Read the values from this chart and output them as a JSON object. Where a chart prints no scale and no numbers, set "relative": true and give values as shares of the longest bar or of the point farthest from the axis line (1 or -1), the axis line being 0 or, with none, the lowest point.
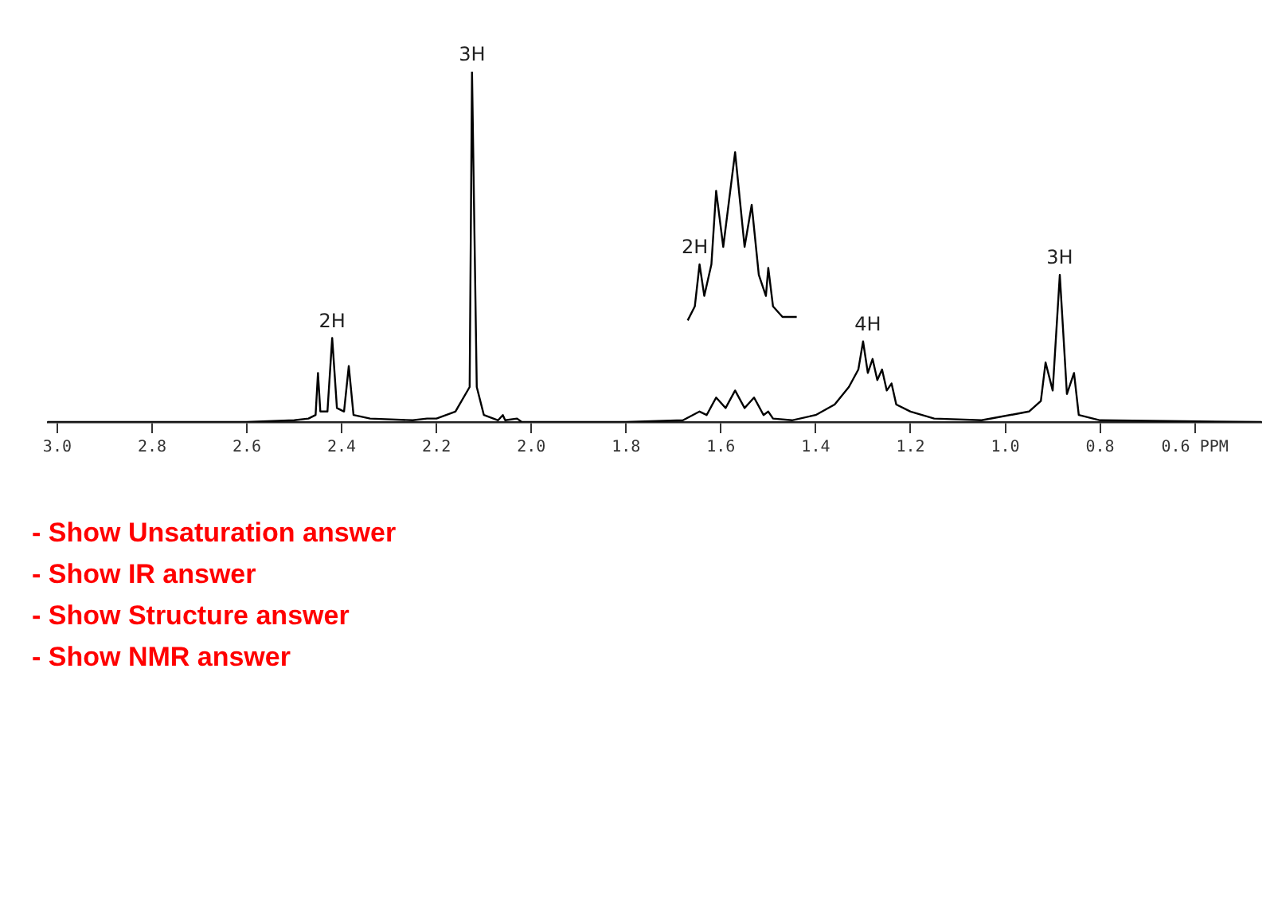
{
  "chart_data": {
    "type": "line",
    "relative": true,
    "xlim": [
      3.02,
      0.46
    ],
    "xticks": [
      {
        "value": 3,
        "label": "3.0"
      },
      2.8,
      2.6,
      2.4,
      2.2,
      {
        "value": 2,
        "label": "2.0"
      },
      1.8,
      1.6,
      1.4,
      1.2,
      {
        "value": 1,
        "label": "1.0"
      },
      0.8,
      {
        "value": 0.6,
        "label": "0.6 PPM"
      }
    ],
    "series": [
      {
        "color": "#000000",
        "x": [
          3.02,
          2.6,
          2.5,
          2.47,
          2.455,
          2.45,
          2.445,
          2.43,
          2.42,
          2.41,
          2.395,
          2.385,
          2.375,
          2.34,
          2.25,
          2.22,
          2.2,
          2.16,
          2.13,
          2.125,
          2.115,
          2.1,
          2.07,
          2.06,
          2.055,
          2.03,
          2.02,
          1.8,
          1.68,
          1.645,
          1.63,
          1.61,
          1.59,
          1.57,
          1.55,
          1.53,
          1.51,
          1.5,
          1.49,
          1.45,
          1.4,
          1.36,
          1.33,
          1.31,
          1.3,
          1.29,
          1.28,
          1.27,
          1.26,
          1.25,
          1.24,
          1.23,
          1.2,
          1.15,
          1.05,
          0.95,
          0.925,
          0.915,
          0.9,
          0.885,
          0.87,
          0.855,
          0.845,
          0.8,
          0.46
        ],
        "values": [
          0,
          0,
          0.005,
          0.01,
          0.02,
          0.14,
          0.03,
          0.03,
          0.24,
          0.04,
          0.03,
          0.16,
          0.02,
          0.01,
          0.005,
          0.01,
          0.01,
          0.03,
          0.1,
          1.0,
          0.1,
          0.02,
          0.005,
          0.02,
          0.005,
          0.01,
          0,
          0,
          0.005,
          0.03,
          0.02,
          0.07,
          0.04,
          0.09,
          0.04,
          0.07,
          0.02,
          0.03,
          0.01,
          0.005,
          0.02,
          0.05,
          0.1,
          0.15,
          0.23,
          0.14,
          0.18,
          0.12,
          0.15,
          0.09,
          0.11,
          0.05,
          0.03,
          0.01,
          0.005,
          0.03,
          0.06,
          0.17,
          0.09,
          0.42,
          0.08,
          0.14,
          0.02,
          0.005,
          0
        ]
      },
      {
        "color": "#000000",
        "x": [
          1.67,
          1.655,
          1.645,
          1.635,
          1.62,
          1.61,
          1.595,
          1.57,
          1.55,
          1.535,
          1.52,
          1.505,
          1.5,
          1.49,
          1.47,
          1.44
        ],
        "values": [
          0.29,
          0.33,
          0.45,
          0.36,
          0.45,
          0.66,
          0.5,
          0.77,
          0.5,
          0.62,
          0.42,
          0.36,
          0.44,
          0.33,
          0.3,
          0.3
        ]
      }
    ],
    "annotations": [
      {
        "text": "2H",
        "x": 2.42,
        "y": 0.24
      },
      {
        "text": "3H",
        "x": 2.125,
        "y": 1.0
      },
      {
        "text": "2H",
        "x": 1.655,
        "y": 0.45
      },
      {
        "text": "4H",
        "x": 1.29,
        "y": 0.23
      },
      {
        "text": "3H",
        "x": 0.885,
        "y": 0.42
      },
      "- Show Unsaturation answer",
      "- Show IR answer",
      "- Show Structure answer",
      "- Show NMR answer"
    ]
  }
}
